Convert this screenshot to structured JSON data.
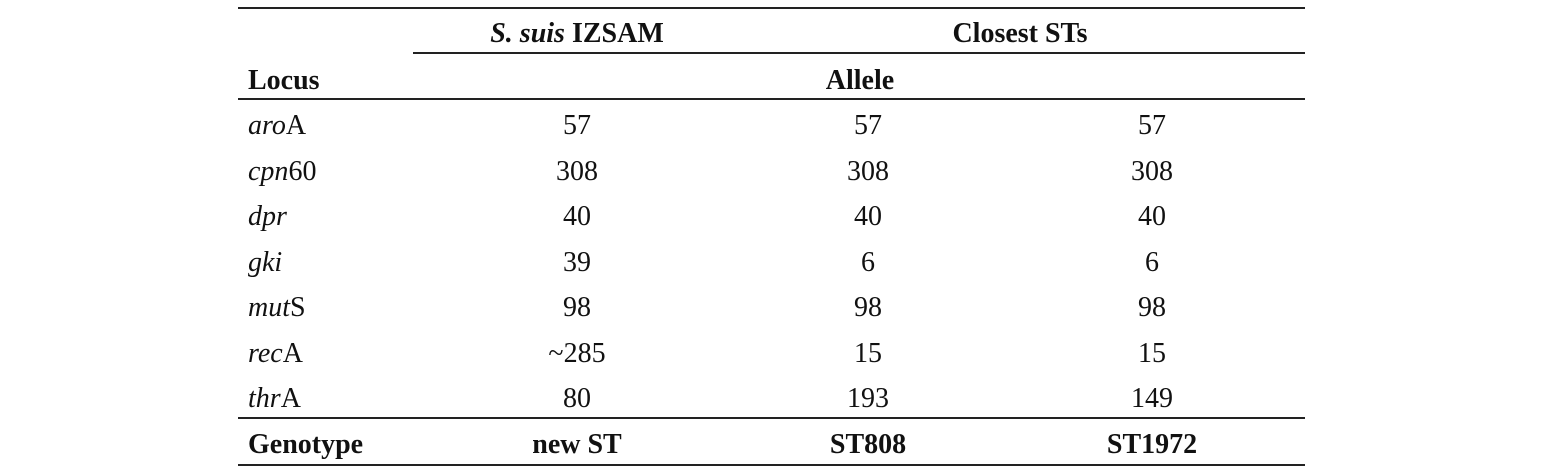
{
  "table": {
    "header": {
      "group_1": {
        "italic": "S. suis",
        "rest": "IZSAM"
      },
      "group_2": "Closest STs",
      "row_label": "Locus",
      "subheader": "Allele"
    },
    "rows": [
      {
        "locus": {
          "italic": "aro",
          "rest": "A"
        },
        "values": [
          57,
          57,
          57
        ]
      },
      {
        "locus": {
          "italic": "cpn",
          "rest": "60"
        },
        "values": [
          308,
          308,
          308
        ]
      },
      {
        "locus": {
          "italic": "dpr"
        },
        "values": [
          40,
          40,
          40
        ]
      },
      {
        "locus": {
          "italic": "gki"
        },
        "values": [
          39,
          6,
          6
        ]
      },
      {
        "locus": {
          "italic": "mut",
          "rest": "S"
        },
        "values": [
          98,
          98,
          98
        ]
      },
      {
        "locus": {
          "italic": "rec",
          "rest": "A"
        },
        "values": [
          "~285",
          15,
          15
        ]
      },
      {
        "locus": {
          "italic": "thr",
          "rest": "A"
        },
        "values": [
          80,
          193,
          149
        ]
      }
    ],
    "footer": {
      "label": "Genotype",
      "values": [
        "new ST",
        "ST808",
        "ST1972"
      ]
    }
  }
}
